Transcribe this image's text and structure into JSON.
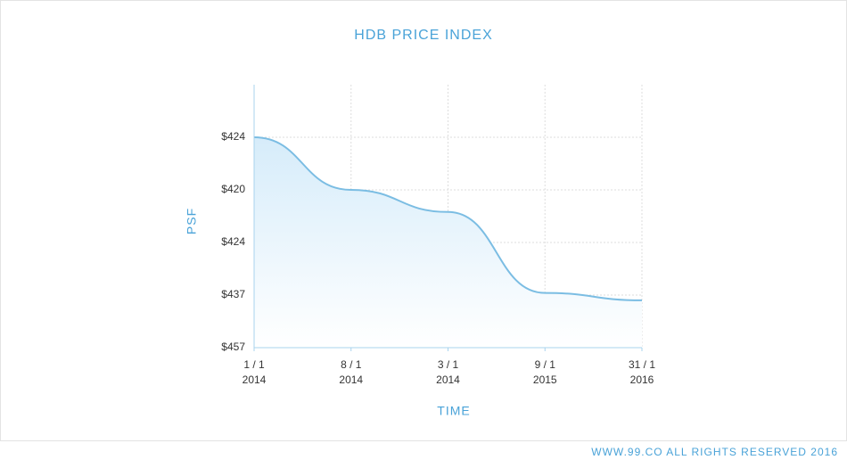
{
  "chart_data": {
    "type": "line",
    "title": "HDB PRICE INDEX",
    "y_label": "PSF",
    "x_label": "TIME",
    "footer": "WWW.99.CO ALL RIGHTS RESERVED 2016",
    "categories": [
      "1 / 1",
      "8 / 1",
      "3 / 1",
      "9 / 1",
      "31 / 1"
    ],
    "category_years": [
      "2014",
      "2014",
      "2014",
      "2015",
      "2016"
    ],
    "series": [
      {
        "name": "HDB",
        "color": "#7bbde3",
        "values": [
          4,
          3,
          2.58,
          1.04,
          0.9
        ]
      }
    ],
    "ylim": [
      0,
      5
    ],
    "yticks": [
      {
        "value": 0,
        "label": "$457"
      },
      {
        "value": 1,
        "label": "$437"
      },
      {
        "value": 2,
        "label": "$424"
      },
      {
        "value": 3,
        "label": "$420"
      },
      {
        "value": 4,
        "label": "$424"
      }
    ],
    "grid": true
  }
}
